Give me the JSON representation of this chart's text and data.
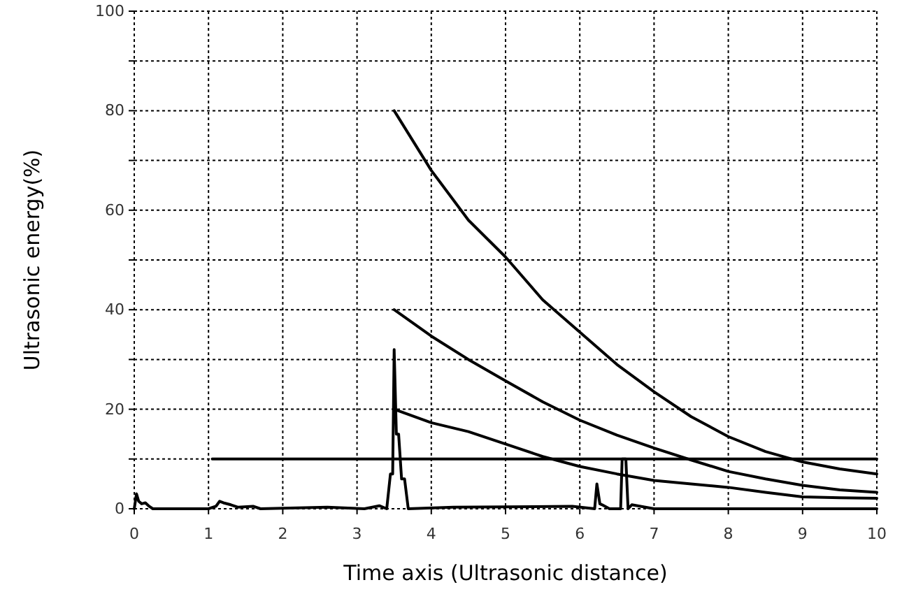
{
  "chart_data": {
    "type": "line",
    "xlabel": "Time axis (Ultrasonic distance)",
    "ylabel": "Ultrasonic energy(%)",
    "xlim": [
      0,
      10
    ],
    "xticks": [
      0,
      1,
      2,
      3,
      4,
      5,
      6,
      7,
      8,
      9,
      10
    ],
    "ylim": [
      0,
      100
    ],
    "yticks": [
      0,
      {
        "value": 10,
        "label": null
      },
      20,
      {
        "value": 30,
        "label": null
      },
      40,
      {
        "value": 50,
        "label": null
      },
      60,
      {
        "value": 70,
        "label": null
      },
      80,
      {
        "value": 90,
        "label": null
      },
      100
    ],
    "grid": true,
    "marker": "none",
    "line_style": "solid",
    "series": [
      {
        "color": "#000000",
        "x": [
          3.5,
          4,
          4.5,
          5,
          5.5,
          6,
          6.5,
          7,
          7.5,
          8,
          8.5,
          9,
          9.5,
          10
        ],
        "values": [
          80,
          68,
          58,
          50.6,
          42,
          35.5,
          29,
          23.5,
          18.5,
          14.5,
          11.5,
          9.4,
          8,
          7
        ]
      },
      {
        "color": "#000000",
        "x": [
          3.5,
          4,
          4.5,
          5,
          5.5,
          6,
          6.5,
          7,
          7.5,
          8,
          8.5,
          9,
          9.5,
          10
        ],
        "values": [
          40,
          34.7,
          30,
          25.7,
          21.5,
          17.8,
          14.8,
          12.2,
          9.8,
          7.5,
          6,
          4.7,
          3.8,
          3.3
        ]
      },
      {
        "color": "#000000",
        "x": [
          3.5,
          4,
          4.5,
          5,
          5.5,
          6,
          6.5,
          7,
          7.5,
          8,
          8.5,
          9,
          9.5,
          10
        ],
        "values": [
          20,
          17.3,
          15.5,
          13,
          10.5,
          8.5,
          7,
          5.7,
          5,
          4.3,
          3.3,
          2.4,
          2.2,
          2.1
        ]
      },
      {
        "color": "#000000",
        "x": [
          1.05,
          10
        ],
        "values": [
          10,
          10
        ]
      },
      {
        "color": "#000000",
        "x": [
          0,
          0.03,
          0.06,
          0.1,
          0.15,
          0.2,
          0.25,
          1,
          1.1,
          1.15,
          1.2,
          1.3,
          1.4,
          1.6,
          1.7,
          2.6,
          3.1,
          3.3,
          3.4,
          3.45,
          3.48,
          3.5,
          3.53,
          3.56,
          3.6,
          3.64,
          3.69,
          4.3,
          5.9,
          6.2,
          6.23,
          6.27,
          6.3,
          6.4,
          6.55,
          6.57,
          6.62,
          6.65,
          6.7,
          7,
          10
        ],
        "values": [
          0,
          3,
          1.5,
          1,
          1.2,
          0.5,
          0,
          0,
          0.5,
          1.5,
          1.2,
          0.8,
          0.3,
          0.5,
          0,
          0.3,
          0,
          0.6,
          0,
          7,
          7,
          32,
          15,
          15,
          6,
          6,
          0,
          0.3,
          0.5,
          0,
          5,
          1,
          0.8,
          0,
          0,
          10,
          10,
          0,
          0.8,
          0,
          0
        ]
      }
    ]
  }
}
